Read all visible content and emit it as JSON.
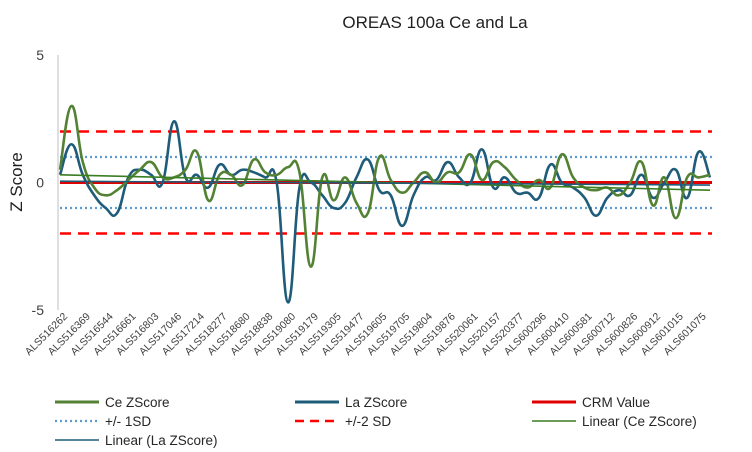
{
  "chart_data": {
    "type": "line",
    "title": "OREAS 100a Ce and La",
    "xlabel": "",
    "ylabel": "Z Score",
    "ylim": [
      -5,
      5
    ],
    "yticks": [
      5,
      0,
      -5
    ],
    "grid": false,
    "legend_position": "bottom",
    "colors": {
      "ce": "#548235",
      "la": "#1f5c7a",
      "crm": "#e00000",
      "sd1": "#5b9bd5",
      "sd2": "#ff0000",
      "lin_ce": "#3a7d22",
      "lin_la": "#1f5c7a"
    },
    "tick_labels": [
      "ALS516262",
      "ALS516369",
      "ALS516544",
      "ALS516661",
      "ALS516803",
      "ALS517046",
      "ALS517214",
      "ALS518277",
      "ALS518680",
      "ALS518838",
      "ALS519080",
      "ALS519179",
      "ALS519305",
      "ALS519477",
      "ALS519605",
      "ALS519705",
      "ALS519804",
      "ALS519876",
      "ALS520061",
      "ALS520157",
      "ALS520377",
      "ALS600296",
      "ALS600410",
      "ALS600581",
      "ALS600712",
      "ALS600826",
      "ALS600912",
      "ALS601015",
      "ALS601075"
    ],
    "n_points": 58,
    "series": [
      {
        "name": "Ce ZScore",
        "values": [
          0.5,
          3.0,
          0.8,
          -0.2,
          -0.5,
          -0.3,
          0.1,
          0.5,
          0.8,
          0.2,
          0.2,
          0.5,
          1.2,
          -0.7,
          0.3,
          0.3,
          -0.1,
          0.9,
          0.4,
          0.3,
          0.6,
          0.4,
          -3.3,
          0.2,
          -0.7,
          0.2,
          -0.8,
          -1.2,
          1.0,
          0.1,
          -0.4,
          0.0,
          0.4,
          0.0,
          0.4,
          0.4,
          1.1,
          0.1,
          0.8,
          0.6,
          0.1,
          -0.2,
          0.1,
          -0.2,
          1.1,
          0.2,
          -0.2,
          -0.3,
          -0.2,
          -0.5,
          0.0,
          0.8,
          -0.9,
          0.2,
          -1.4,
          0.2,
          0.2,
          0.3
        ]
      },
      {
        "name": "La ZScore",
        "values": [
          0.3,
          1.5,
          0.3,
          -0.5,
          -1.0,
          -1.2,
          0.2,
          0.5,
          0.3,
          0.0,
          2.4,
          0.2,
          0.3,
          -0.2,
          0.7,
          0.3,
          0.5,
          0.4,
          0.2,
          0.0,
          -4.7,
          -0.2,
          0.0,
          -0.5,
          -1.0,
          -0.8,
          0.2,
          0.9,
          -0.3,
          -0.5,
          -1.7,
          -0.5,
          0.2,
          0.1,
          0.8,
          0.2,
          0.0,
          1.3,
          -0.2,
          0.2,
          -0.4,
          -0.4,
          -0.6,
          0.7,
          0.0,
          -0.2,
          -0.6,
          -1.3,
          -0.6,
          -0.3,
          -0.5,
          0.3,
          -0.6,
          0.0,
          0.5,
          -0.6,
          1.2,
          0.2
        ]
      },
      {
        "name": "CRM Value",
        "values": [
          0,
          0
        ]
      },
      {
        "name": "+/- 1SD",
        "values": [
          1,
          -1
        ]
      },
      {
        "name": "+/-2 SD",
        "values": [
          2,
          -2
        ]
      },
      {
        "name": "Linear (Ce ZScore)",
        "values": [
          0.3,
          -0.3
        ]
      },
      {
        "name": "Linear (La ZScore)",
        "values": [
          0.05,
          -0.1
        ]
      }
    ]
  }
}
